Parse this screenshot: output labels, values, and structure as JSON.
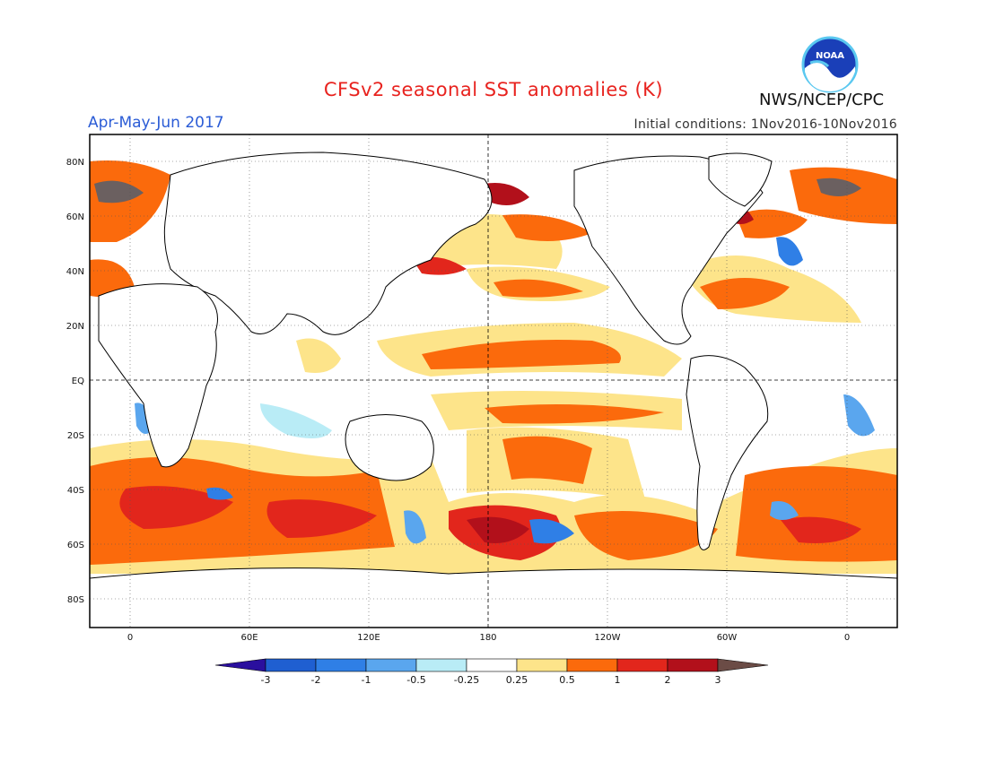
{
  "title": "CFSv2 seasonal SST anomalies (K)",
  "season": "Apr-May-Jun 2017",
  "initial_conditions": "Initial conditions: 1Nov2016-10Nov2016",
  "agency": "NWS/NCEP/CPC",
  "logo_text": "NOAA",
  "logo_icon": "noaa-logo-icon",
  "lat_labels": [
    "80N",
    "60N",
    "40N",
    "20N",
    "EQ",
    "20S",
    "40S",
    "60S",
    "80S"
  ],
  "lon_labels": [
    "0",
    "60E",
    "120E",
    "180",
    "120W",
    "60W",
    "0"
  ],
  "colorbar": {
    "labels": [
      "-3",
      "-2",
      "-1",
      "-0.5",
      "-0.25",
      "0.25",
      "0.5",
      "1",
      "2",
      "3"
    ],
    "colors": [
      "#2a0f9e",
      "#1f5fd1",
      "#2f7fe6",
      "#5aa6ee",
      "#b9ecf6",
      "#ffffff",
      "#fde48a",
      "#fb6a0c",
      "#e2261c",
      "#b2101b",
      "#6b4c46"
    ]
  },
  "colors": {
    "land_outline": "#000000",
    "ocean_background": "#ffffff",
    "weak_warm": "#fde48a",
    "warm": "#fb6a0c",
    "strong_warm": "#e2261c",
    "very_warm": "#b2101b",
    "extreme_warm": "#6b6060",
    "weak_cool": "#b9ecf6",
    "cool": "#5aa6ee",
    "strong_cool": "#2f7fe6"
  }
}
